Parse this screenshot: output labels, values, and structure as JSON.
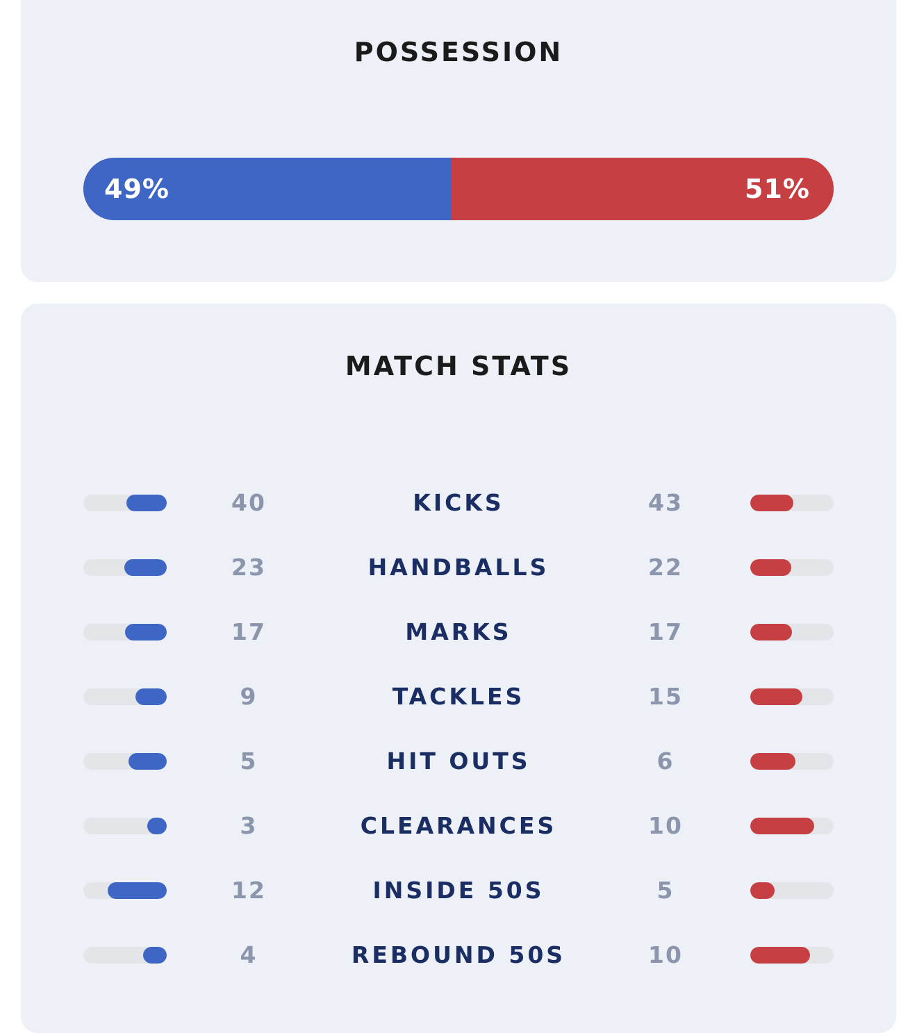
{
  "colors": {
    "card_bg": "#edf0f7",
    "home": "#3e66c5",
    "away": "#c63f43",
    "track": "#e4e5e8",
    "stat_label": "#1b2e63",
    "stat_value": "#8b95ab",
    "title": "#1b1b1b"
  },
  "possession": {
    "title": "POSSESSION",
    "home_value": 49,
    "away_value": 51,
    "home_label": "49%",
    "away_label": "51%"
  },
  "match_stats": {
    "title": "MATCH STATS",
    "rows": [
      {
        "label": "KICKS",
        "home": "40",
        "away": "43"
      },
      {
        "label": "HANDBALLS",
        "home": "23",
        "away": "22"
      },
      {
        "label": "MARKS",
        "home": "17",
        "away": "17"
      },
      {
        "label": "TACKLES",
        "home": "9",
        "away": "15"
      },
      {
        "label": "HIT OUTS",
        "home": "5",
        "away": "6"
      },
      {
        "label": "CLEARANCES",
        "home": "3",
        "away": "10"
      },
      {
        "label": "INSIDE 50S",
        "home": "12",
        "away": "5"
      },
      {
        "label": "REBOUND 50S",
        "home": "4",
        "away": "10"
      }
    ]
  }
}
